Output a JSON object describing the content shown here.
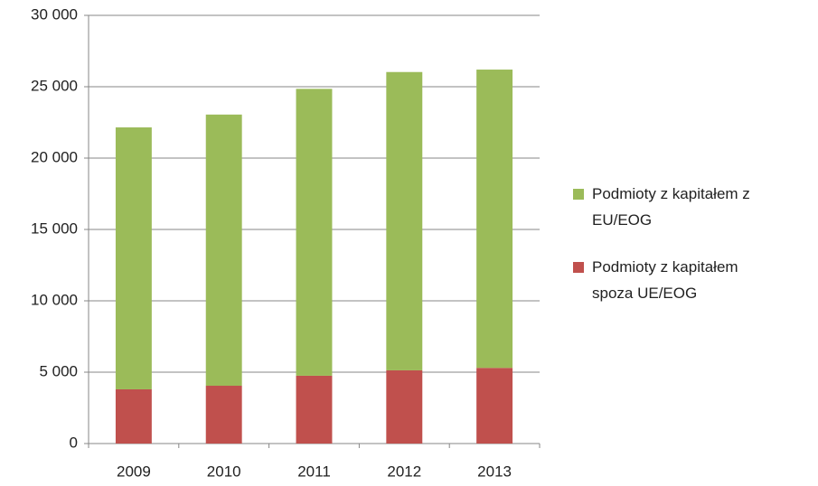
{
  "chart_data": {
    "type": "bar",
    "stacked": true,
    "categories": [
      "2009",
      "2010",
      "2011",
      "2012",
      "2013"
    ],
    "series": [
      {
        "name": "Podmioty z kapitałem spoza UE/EOG",
        "color": "#c0504d",
        "values": [
          3800,
          4050,
          4750,
          5130,
          5300
        ]
      },
      {
        "name": "Podmioty z kapitałem z EU/EOG",
        "color": "#9bbb59",
        "values": [
          18350,
          19000,
          20100,
          20900,
          20900
        ]
      }
    ],
    "ylim": [
      0,
      30000
    ],
    "yticks": [
      0,
      {
        "value": 5000,
        "label": "5 000"
      },
      {
        "value": 10000,
        "label": "10 000"
      },
      {
        "value": 15000,
        "label": "15 000"
      },
      {
        "value": 20000,
        "label": "20 000"
      },
      {
        "value": 25000,
        "label": "25 000"
      },
      {
        "value": 30000,
        "label": "30 000"
      }
    ],
    "grid": true,
    "legend": "right"
  }
}
